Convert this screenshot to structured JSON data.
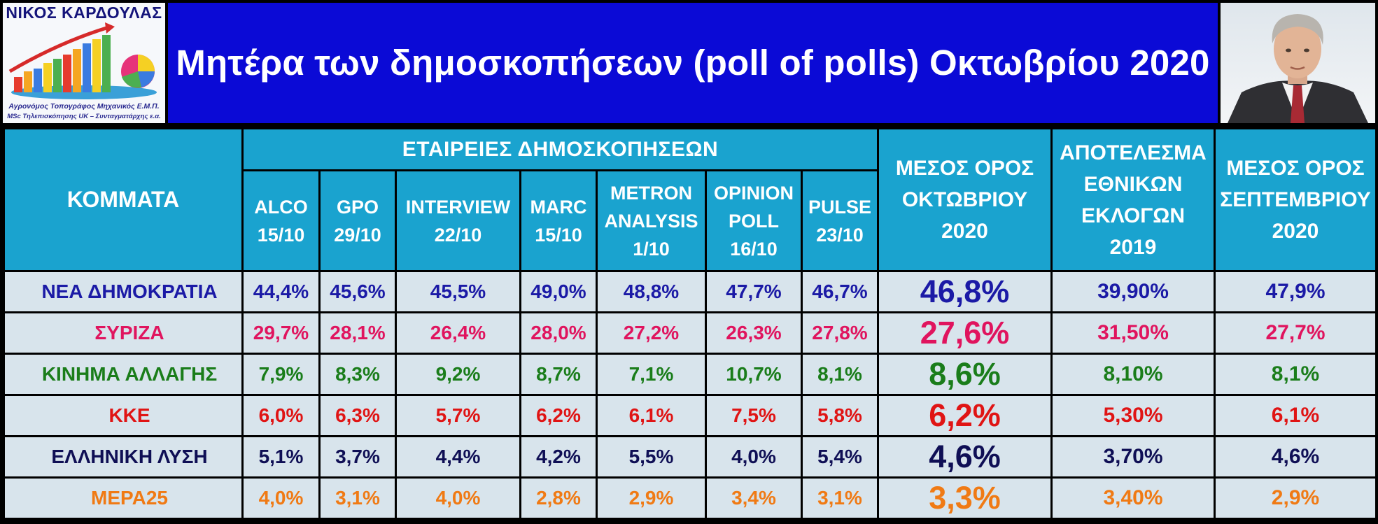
{
  "header": {
    "logo_name": "ΝΙΚΟΣ ΚΑΡΔΟΥΛΑΣ",
    "logo_subtitle_1": "Αγρονόμος Τοπογράφος Μηχανικός Ε.Μ.Π.",
    "logo_subtitle_2": "MSc Τηλεπισκόπησης UK – Συνταγματάρχης ε.α.",
    "title": "Μητέρα των δημοσκοπήσεων (poll of polls) Οκτωβρίου 2020",
    "title_bg": "#0b0ad6",
    "header_bg": "#1aa3cf",
    "cell_bg": "#d8e4ec"
  },
  "table": {
    "col_parties": "ΚΟΜΜΑΤΑ",
    "col_companies": "ΕΤΑΙΡΕΙΕΣ ΔΗΜΟΣΚΟΠΗΣΕΩΝ",
    "pollsters": [
      {
        "line1": "ALCO",
        "line2": "15/10"
      },
      {
        "line1": "GPO",
        "line2": "29/10"
      },
      {
        "line1": "INTERVIEW",
        "line2": "22/10"
      },
      {
        "line1": "MARC",
        "line2": "15/10"
      },
      {
        "line1": "METRON",
        "line2": "ANALYSIS",
        "line3": "1/10"
      },
      {
        "line1": "OPINION",
        "line2": "POLL",
        "line3": "16/10"
      },
      {
        "line1": "PULSE",
        "line2": "23/10"
      }
    ],
    "col_avg": {
      "line1": "ΜΕΣΟΣ ΟΡΟΣ",
      "line2": "ΟΚΤΩΒΡΙΟΥ",
      "line3": "2020"
    },
    "col_result": {
      "line1": "ΑΠΟΤΕΛΕΣΜΑ",
      "line2": "ΕΘΝΙΚΩΝ",
      "line3": "ΕΚΛΟΓΩΝ",
      "line4": "2019"
    },
    "col_sep": {
      "line1": "ΜΕΣΟΣ ΟΡΟΣ",
      "line2": "ΣΕΠΤΕΜΒΡΙΟΥ",
      "line3": "2020"
    },
    "rows": [
      {
        "party": "ΝΕΑ ΔΗΜΟΚΡΑΤΙΑ",
        "color": "#1b1aa6",
        "polls": [
          "44,4%",
          "45,6%",
          "45,5%",
          "49,0%",
          "48,8%",
          "47,7%",
          "46,7%"
        ],
        "avg": "46,8%",
        "result": "39,90%",
        "sep": "47,9%"
      },
      {
        "party": "ΣΥΡΙΖΑ",
        "color": "#e0145e",
        "polls": [
          "29,7%",
          "28,1%",
          "26,4%",
          "28,0%",
          "27,2%",
          "26,3%",
          "27,8%"
        ],
        "avg": "27,6%",
        "result": "31,50%",
        "sep": "27,7%"
      },
      {
        "party": "ΚΙΝΗΜΑ ΑΛΛΑΓΗΣ",
        "color": "#1a7d1a",
        "polls": [
          "7,9%",
          "8,3%",
          "9,2%",
          "8,7%",
          "7,1%",
          "10,7%",
          "8,1%"
        ],
        "avg": "8,6%",
        "result": "8,10%",
        "sep": "8,1%"
      },
      {
        "party": "ΚΚΕ",
        "color": "#e01414",
        "polls": [
          "6,0%",
          "6,3%",
          "5,7%",
          "6,2%",
          "6,1%",
          "7,5%",
          "5,8%"
        ],
        "avg": "6,2%",
        "result": "5,30%",
        "sep": "6,1%"
      },
      {
        "party": "ΕΛΛΗΝΙΚΗ ΛΥΣΗ",
        "color": "#0f0f55",
        "polls": [
          "5,1%",
          "3,7%",
          "4,4%",
          "4,2%",
          "5,5%",
          "4,0%",
          "5,4%"
        ],
        "avg": "4,6%",
        "result": "3,70%",
        "sep": "4,6%"
      },
      {
        "party": "ΜΕΡΑ25",
        "color": "#f07a14",
        "polls": [
          "4,0%",
          "3,1%",
          "4,0%",
          "2,8%",
          "2,9%",
          "3,4%",
          "3,1%"
        ],
        "avg": "3,3%",
        "result": "3,40%",
        "sep": "2,9%"
      }
    ]
  }
}
